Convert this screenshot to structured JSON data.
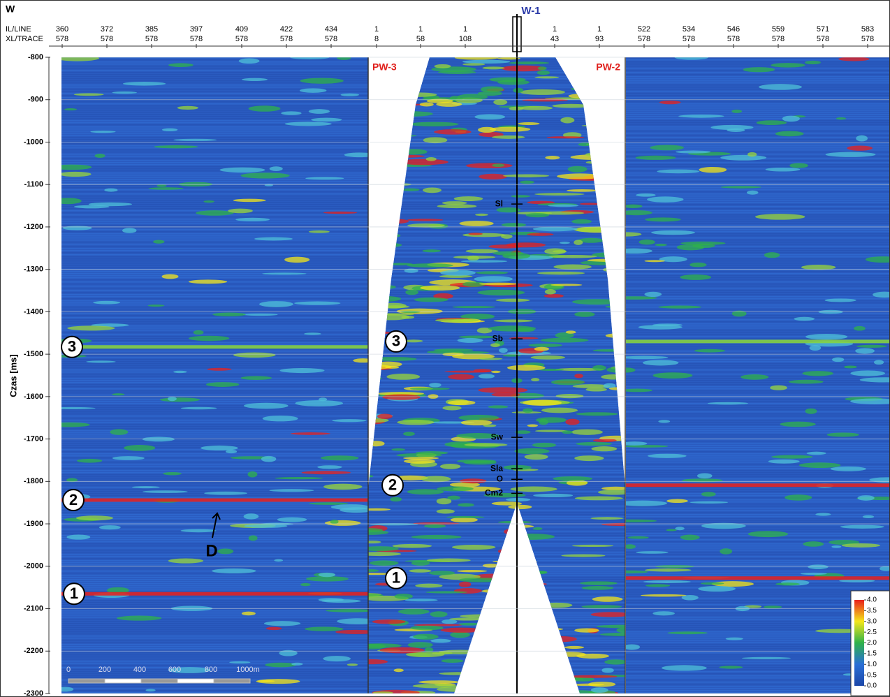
{
  "chart_data": {
    "type": "seismic-section",
    "y_label": "Czas [ms]",
    "ylim": [
      -2300,
      -800
    ],
    "yticks": [
      -800,
      -900,
      -1000,
      -1100,
      -1200,
      -1300,
      -1400,
      -1500,
      -1600,
      -1700,
      -1800,
      -1900,
      -2000,
      -2100,
      -2200,
      -2300
    ],
    "grid": true,
    "top_axis": {
      "row_labels": [
        "IL/LINE",
        "XL/TRACE"
      ],
      "il_line": [
        360,
        372,
        385,
        397,
        409,
        422,
        434,
        1,
        1,
        1,
        1,
        1,
        522,
        534,
        546,
        559,
        571,
        583
      ],
      "xl_trace": [
        578,
        578,
        578,
        578,
        578,
        578,
        578,
        8,
        58,
        108,
        43,
        93,
        578,
        578,
        578,
        578,
        578,
        578
      ]
    },
    "annotations": {
      "region": "W",
      "well": "W-1",
      "left_profile": "PW-3",
      "right_profile": "PW-2",
      "fault": "D"
    },
    "horizons": [
      {
        "label": "3",
        "left": -1483,
        "right": -1470
      },
      {
        "label": "2",
        "left": -1844,
        "right": -1809
      },
      {
        "label": "1",
        "left": -2065,
        "right": -2028
      }
    ],
    "well_tops": [
      {
        "name": "Sl",
        "time": -1146
      },
      {
        "name": "Sb",
        "time": -1464
      },
      {
        "name": "Sw",
        "time": -1696
      },
      {
        "name": "Sla",
        "time": -1770
      },
      {
        "name": "O",
        "time": -1795
      },
      {
        "name": "Cm2",
        "time": -1828
      }
    ],
    "scale_bar": [
      "0",
      "200",
      "400",
      "600",
      "800",
      "1000m"
    ],
    "colorbar": {
      "colors": [
        "#e8201c",
        "#f4e61a",
        "#2fb24a",
        "#2a6fd6",
        "#1c47a8"
      ],
      "ticks": [
        {
          "value": 4,
          "label": "4.0"
        },
        {
          "value": 3.5,
          "label": "3.5"
        },
        {
          "value": 3,
          "label": "3.0"
        },
        {
          "value": 2.5,
          "label": "2.5"
        },
        {
          "value": 2,
          "label": "2.0"
        },
        {
          "value": 1.5,
          "label": "1.5"
        },
        {
          "value": 1,
          "label": "1.0"
        },
        {
          "value": 0.5,
          "label": "0.5"
        },
        {
          "value": 0,
          "label": "0.0"
        }
      ]
    }
  }
}
